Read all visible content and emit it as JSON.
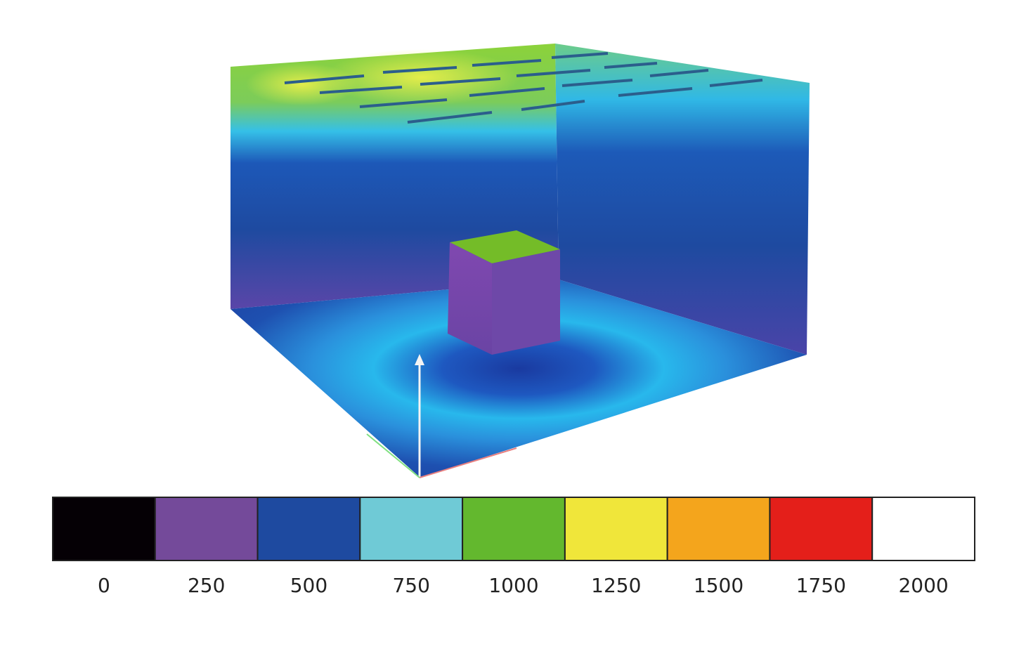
{
  "colorbar": {
    "ticks": [
      0,
      250,
      500,
      750,
      1000,
      1250,
      1500,
      1750,
      2000
    ],
    "colors": [
      "#050005",
      "#744a9a",
      "#1e4aa0",
      "#6fcad6",
      "#63b82e",
      "#f0e63a",
      "#f4a51c",
      "#e41f1a",
      "#ffffff"
    ]
  }
}
